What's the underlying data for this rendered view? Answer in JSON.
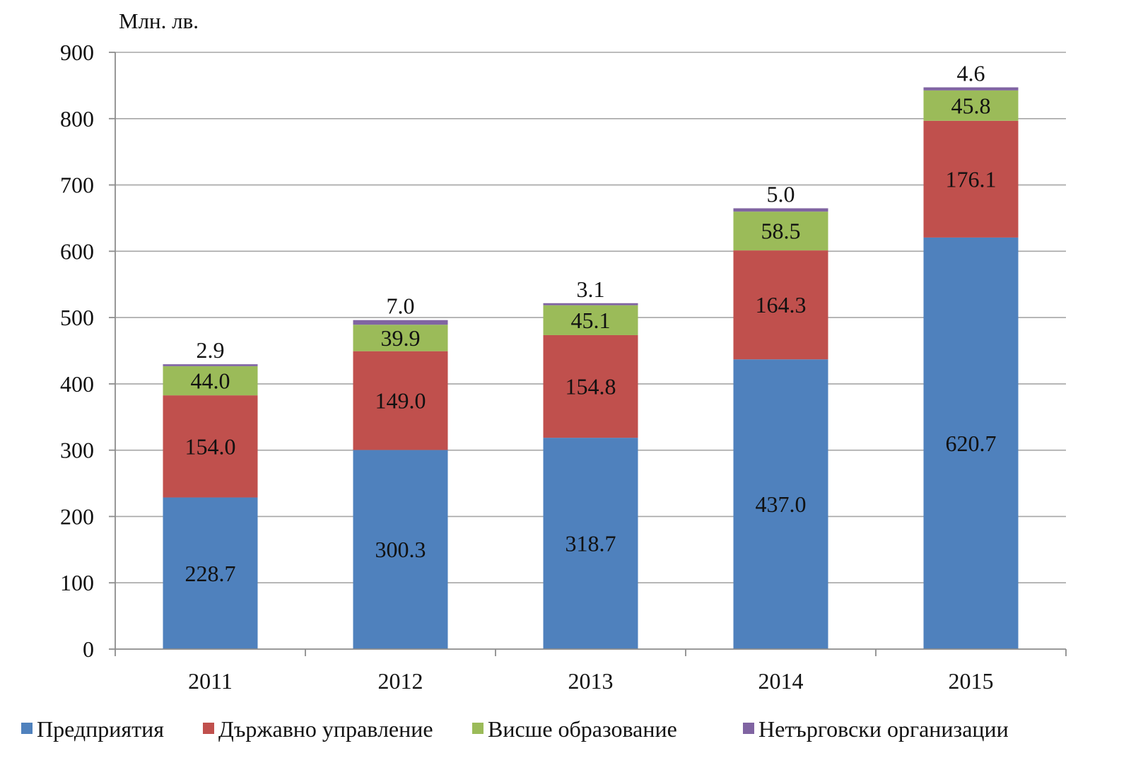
{
  "chart_data": {
    "type": "bar",
    "stacked": true,
    "title": "",
    "xlabel": "",
    "ylabel": "Млн. лв.",
    "ylim": [
      0,
      900
    ],
    "yticks": [
      "0",
      "100",
      "200",
      "300",
      "400",
      "500",
      "600",
      "700",
      "800",
      "900"
    ],
    "grid": true,
    "legend_position": "bottom",
    "categories": [
      "2011",
      "2012",
      "2013",
      "2014",
      "2015"
    ],
    "series": [
      {
        "name": "Предприятия",
        "color": "#4f81bd",
        "values": [
          228.7,
          300.3,
          318.7,
          437.0,
          620.7
        ],
        "labels": [
          "228.7",
          "300.3",
          "318.7",
          "437.0",
          "620.7"
        ]
      },
      {
        "name": "Държавно управление",
        "color": "#c0504d",
        "values": [
          154.0,
          149.0,
          154.8,
          164.3,
          176.1
        ],
        "labels": [
          "154.0",
          "149.0",
          "154.8",
          "164.3",
          "176.1"
        ]
      },
      {
        "name": "Висше образование",
        "color": "#9bbb59",
        "values": [
          44.0,
          39.9,
          45.1,
          58.5,
          45.8
        ],
        "labels": [
          "44.0",
          "39.9",
          "45.1",
          "58.5",
          "45.8"
        ]
      },
      {
        "name": "Нетърговски организации",
        "color": "#8064a2",
        "values": [
          2.9,
          7.0,
          3.1,
          5.0,
          4.6
        ],
        "labels": [
          "2.9",
          "7.0",
          "3.1",
          "5.0",
          "4.6"
        ]
      }
    ]
  }
}
